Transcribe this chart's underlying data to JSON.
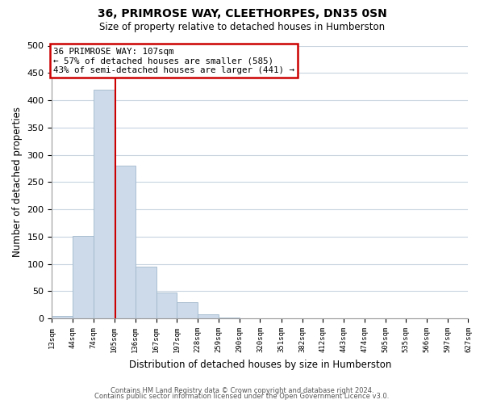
{
  "title": "36, PRIMROSE WAY, CLEETHORPES, DN35 0SN",
  "subtitle": "Size of property relative to detached houses in Humberston",
  "xlabel": "Distribution of detached houses by size in Humberston",
  "ylabel": "Number of detached properties",
  "bin_edges": [
    13,
    44,
    74,
    105,
    136,
    167,
    197,
    228,
    259,
    290,
    320,
    351,
    382,
    412,
    443,
    474,
    505,
    535,
    566,
    597,
    627
  ],
  "bar_heights": [
    5,
    151,
    420,
    280,
    95,
    48,
    30,
    8,
    2,
    0,
    0,
    0,
    0,
    0,
    0,
    0,
    0,
    0,
    0,
    0
  ],
  "bar_color": "#ccdaea",
  "bar_edge_color": "#a0b8cc",
  "property_line_x": 107,
  "property_line_color": "#cc0000",
  "annotation_title": "36 PRIMROSE WAY: 107sqm",
  "annotation_line1": "← 57% of detached houses are smaller (585)",
  "annotation_line2": "43% of semi-detached houses are larger (441) →",
  "annotation_box_facecolor": "#ffffff",
  "annotation_box_edgecolor": "#cc0000",
  "ylim": [
    0,
    500
  ],
  "yticks": [
    0,
    50,
    100,
    150,
    200,
    250,
    300,
    350,
    400,
    450,
    500
  ],
  "tick_labels": [
    "13sqm",
    "44sqm",
    "74sqm",
    "105sqm",
    "136sqm",
    "167sqm",
    "197sqm",
    "228sqm",
    "259sqm",
    "290sqm",
    "320sqm",
    "351sqm",
    "382sqm",
    "412sqm",
    "443sqm",
    "474sqm",
    "505sqm",
    "535sqm",
    "566sqm",
    "597sqm",
    "627sqm"
  ],
  "footer1": "Contains HM Land Registry data © Crown copyright and database right 2024.",
  "footer2": "Contains public sector information licensed under the Open Government Licence v3.0.",
  "background_color": "#ffffff",
  "plot_background_color": "#ffffff",
  "grid_color": "#c8d4e0"
}
